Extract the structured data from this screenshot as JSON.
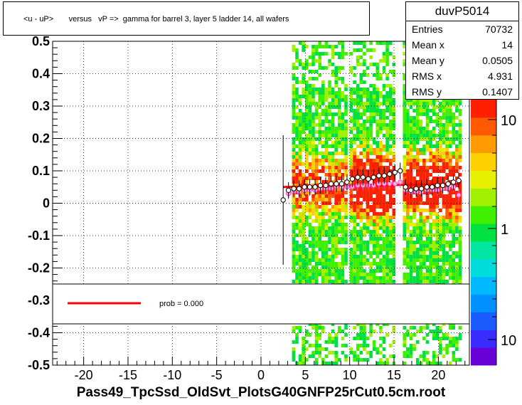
{
  "title": "<u - uP>       versus   vP =>  gamma for barrel 3, layer 5 ladder 14, all wafers",
  "stats": {
    "name": "duvP5014",
    "rows": [
      {
        "label": "Entries",
        "value": "70732"
      },
      {
        "label": "Mean x",
        "value": "14"
      },
      {
        "label": "Mean y",
        "value": "0.0505"
      },
      {
        "label": "RMS x",
        "value": "4.931"
      },
      {
        "label": "RMS y",
        "value": "0.1407"
      }
    ]
  },
  "legend": {
    "text": "prob = 0.000",
    "line_color": "#ff0000"
  },
  "footer": "Pass49_TpcSsd_OldSvt_PlotsG40GNFP25rCut0.5cm.root",
  "chart_data": {
    "type": "heatmap",
    "title": "<u - uP>       versus   vP =>  gamma for barrel 3, layer 5 ladder 14, all wafers",
    "xlabel": "",
    "ylabel": "",
    "xlim": [
      -23.5,
      23.5
    ],
    "ylim": [
      -0.5,
      0.5
    ],
    "x_ticks": [
      -20,
      -15,
      -10,
      -5,
      0,
      5,
      10,
      15,
      20
    ],
    "x_tick_labels": [
      "-20",
      "-15",
      "-10",
      "-5",
      "0",
      "5",
      "10",
      "15",
      "20"
    ],
    "y_ticks": [
      -0.5,
      -0.4,
      -0.3,
      -0.2,
      -0.1,
      0,
      0.1,
      0.2,
      0.3,
      0.4,
      0.5
    ],
    "y_tick_labels": [
      "-0.5",
      "-0.4",
      "-0.3",
      "-0.2",
      "-0.1",
      "0",
      "0.1",
      "0.2",
      "0.3",
      "0.4",
      "0.5"
    ],
    "grid": true,
    "log_z": true,
    "z_tick_labels": [
      "10",
      "1",
      "10"
    ],
    "occupied_x_ranges": [
      [
        3.5,
        9.5
      ],
      [
        10,
        15
      ],
      [
        16,
        22.5
      ]
    ],
    "fit_line": {
      "x": [
        2.5,
        22.5
      ],
      "y": [
        0.05,
        0.06
      ],
      "color": "#ff0000"
    },
    "profile_black": {
      "x": [
        2.5,
        3.1,
        3.7,
        4.3,
        4.9,
        5.5,
        6.1,
        6.7,
        7.3,
        7.9,
        8.5,
        9.1,
        9.7,
        10.3,
        10.9,
        11.5,
        12.1,
        12.7,
        13.3,
        13.9,
        14.5,
        15.1,
        15.7,
        16.3,
        16.9,
        17.5,
        18.1,
        18.7,
        19.3,
        19.9,
        20.5,
        21.1,
        21.7,
        22.3
      ],
      "y": [
        0.01,
        0.04,
        0.045,
        0.045,
        0.05,
        0.05,
        0.05,
        0.055,
        0.055,
        0.06,
        0.06,
        0.06,
        0.065,
        0.075,
        0.08,
        0.08,
        0.075,
        0.08,
        0.085,
        0.085,
        0.09,
        0.095,
        0.1,
        0.05,
        0.04,
        0.045,
        0.045,
        0.05,
        0.05,
        0.055,
        0.055,
        0.06,
        0.065,
        0.07
      ]
    },
    "profile_pink": {
      "x": [
        3.1,
        3.7,
        4.3,
        4.9,
        5.5,
        6.1,
        6.7,
        7.3,
        7.9,
        8.5,
        9.1,
        9.7,
        10.3,
        10.9,
        11.5,
        12.1,
        12.7,
        13.3,
        13.9,
        14.5,
        15.1,
        15.7,
        16.3,
        16.9,
        17.5,
        18.1,
        18.7,
        19.3,
        19.9,
        20.5,
        21.1,
        21.7,
        22.3
      ],
      "y": [
        0.03,
        0.035,
        0.035,
        0.04,
        0.04,
        0.04,
        0.045,
        0.045,
        0.045,
        0.05,
        0.05,
        0.05,
        0.05,
        0.055,
        0.055,
        0.055,
        0.055,
        0.06,
        0.06,
        0.06,
        0.06,
        0.065,
        0.04,
        0.035,
        0.035,
        0.035,
        0.04,
        0.04,
        0.04,
        0.045,
        0.045,
        0.05,
        0.025
      ]
    }
  }
}
